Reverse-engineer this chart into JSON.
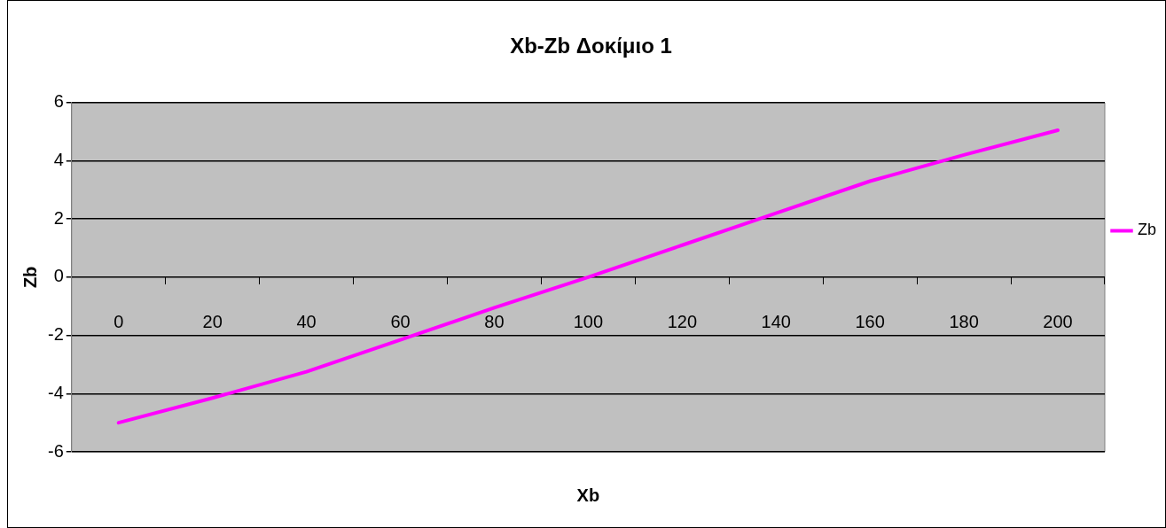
{
  "chart_data": {
    "type": "line",
    "title": "Xb-Zb Δοκίμιο 1",
    "xlabel": "Xb",
    "ylabel": "Zb",
    "categories": [
      "0",
      "20",
      "40",
      "60",
      "80",
      "100",
      "120",
      "140",
      "160",
      "180",
      "200"
    ],
    "series": [
      {
        "name": "Zb",
        "color": "#ff00ff",
        "values": [
          -5,
          -4.15,
          -3.25,
          -2.15,
          -1.05,
          0,
          1.1,
          2.2,
          3.3,
          4.2,
          5.05
        ]
      }
    ],
    "ylim": [
      -6,
      6
    ],
    "yticks": [
      -6,
      -4,
      -2,
      0,
      2,
      4,
      6
    ],
    "grid": "y",
    "legend": "right",
    "marker": "none",
    "line_style": "solid"
  }
}
